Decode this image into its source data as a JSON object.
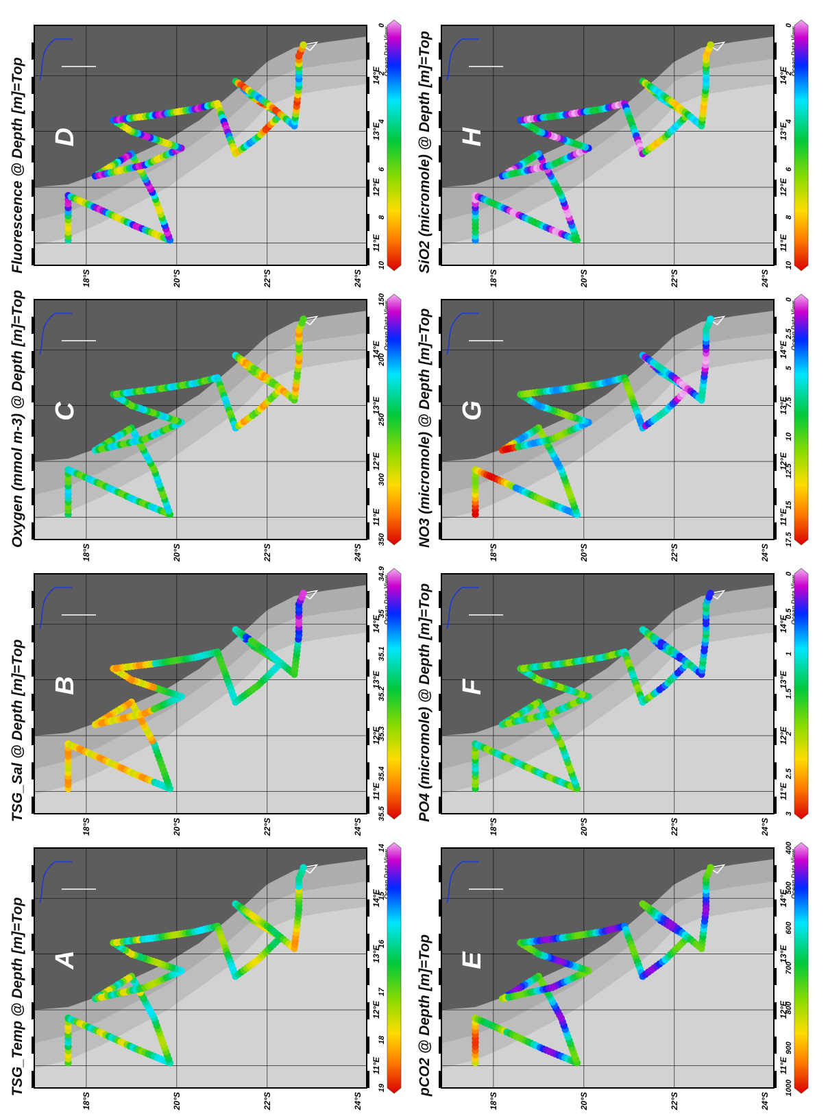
{
  "panels": [
    {
      "id": "A",
      "title": "TSG_Temp @ Depth [m]=Top",
      "cb_ticks": [
        "19",
        "18",
        "17",
        "16",
        "15",
        "14"
      ],
      "cb_kind": "temp"
    },
    {
      "id": "B",
      "title": "TSG_Sal @ Depth [m]=Top",
      "cb_ticks": [
        "35.5",
        "35.4",
        "35.3",
        "35.2",
        "35.1",
        "35",
        "34.9"
      ],
      "cb_kind": "sal"
    },
    {
      "id": "C",
      "title": "Oxygen (mmol m-3) @ Depth [m]=Top",
      "cb_ticks": [
        "350",
        "300",
        "250",
        "200",
        "150"
      ],
      "cb_kind": "oxy"
    },
    {
      "id": "D",
      "title": "Fluorescence @ Depth [m]=Top",
      "cb_ticks": [
        "10",
        "8",
        "6",
        "4",
        "2",
        "0"
      ],
      "cb_kind": "flu"
    },
    {
      "id": "E",
      "title": "pCO2 @ Depth [m]=Top",
      "cb_ticks": [
        "1000",
        "900",
        "800",
        "700",
        "600",
        "500",
        "400"
      ],
      "cb_kind": "pco2"
    },
    {
      "id": "F",
      "title": "PO4 (micromole) @ Depth [m]=Top",
      "cb_ticks": [
        "3",
        "2.5",
        "2",
        "1.5",
        "1",
        "0.5",
        "0"
      ],
      "cb_kind": "po4"
    },
    {
      "id": "G",
      "title": "NO3 (micromole) @ Depth [m]=Top",
      "cb_ticks": [
        "17.5",
        "15",
        "12.5",
        "10",
        "7.5",
        "5",
        "2.5",
        "0"
      ],
      "cb_kind": "no3"
    },
    {
      "id": "H",
      "title": "SiO2 (micromole) @ Depth [m]=Top",
      "cb_ticks": [
        "10",
        "8",
        "6",
        "4",
        "2",
        "0"
      ],
      "cb_kind": "sio2"
    }
  ],
  "lat_ticks": [
    "18°S",
    "20°S",
    "22°S",
    "24°S"
  ],
  "lon_ticks": [
    "11°E",
    "12°E",
    "13°E",
    "14°E"
  ],
  "watermark": "Ocean Data View",
  "colors": {
    "land": "#5d5d5d",
    "sea_deep": "#c8c8c8",
    "sea_shelf": "#a9a9a9",
    "coast_line": "#1a3ad8"
  }
}
